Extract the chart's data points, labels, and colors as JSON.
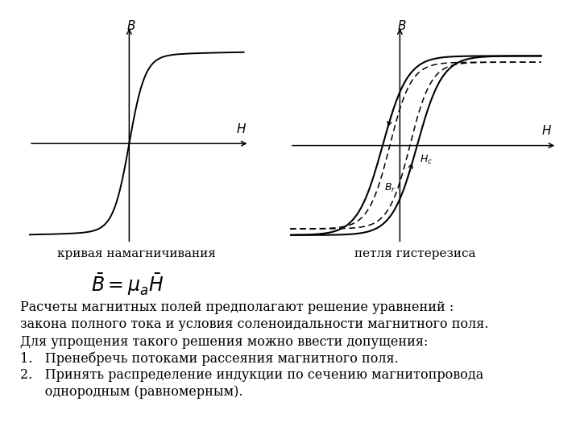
{
  "bg_color": "#ffffff",
  "caption_left": "кривая намагничивания",
  "caption_right": "петля гистерезиса",
  "text_lines": [
    "Расчеты магнитных полей предполагают решение уравнений :",
    "закона полного тока и условия соленоидальности магнитного поля.",
    "Для упрощения такого решения можно ввести допущения:",
    "1.   Пренебречь потоками рассеяния магнитного поля.",
    "2.   Принять распределение индукции по сечению магнитопровода",
    "      однородным (равномерным)."
  ]
}
